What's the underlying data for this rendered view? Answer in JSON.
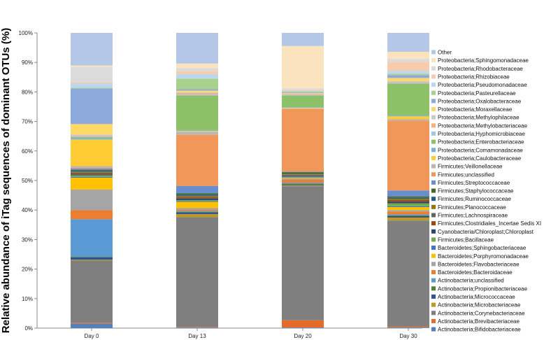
{
  "chart_data": {
    "type": "bar",
    "stacked": true,
    "ylabel": "Relative abundance of iTag sequences of dominant OTUs (%)",
    "ylim": [
      0,
      100
    ],
    "yticks": [
      "0%",
      "10%",
      "20%",
      "30%",
      "40%",
      "50%",
      "60%",
      "70%",
      "80%",
      "90%",
      "100%"
    ],
    "categories": [
      "Day 0",
      "Day 13",
      "Day 20",
      "Day 30"
    ],
    "grid": false,
    "legend_position": "right",
    "series": [
      {
        "name": "Actinobacteria;Bifidobacteriaceae",
        "color": "#4f81bd",
        "values": [
          1.5,
          0.2,
          0.2,
          0.2
        ]
      },
      {
        "name": "Actinobacteria;Brevibacteriaceae",
        "color": "#e46c28",
        "values": [
          0.3,
          0.2,
          2.5,
          0.3
        ]
      },
      {
        "name": "Actinobacteria;Corynebacteriaceae",
        "color": "#7f7f7f",
        "values": [
          21.0,
          36.5,
          46.0,
          36.5
        ]
      },
      {
        "name": "Actinobacteria;Microbacteriaceae",
        "color": "#c09a20",
        "values": [
          0.3,
          1.0,
          0.3,
          1.0
        ]
      },
      {
        "name": "Actinobacteria;Micrococcaceae",
        "color": "#2f5597",
        "values": [
          0.8,
          0.5,
          0.3,
          0.5
        ]
      },
      {
        "name": "Actinobacteria;Propionibacteriaceae",
        "color": "#548235",
        "values": [
          0.2,
          0.3,
          0.3,
          0.3
        ]
      },
      {
        "name": "Actinobacteria;unclassified",
        "color": "#5b9bd5",
        "values": [
          12.7,
          0.3,
          0.3,
          0.3
        ]
      },
      {
        "name": "Bacteroidetes;Bacteroidaceae",
        "color": "#ed7d31",
        "values": [
          3.0,
          0.5,
          1.0,
          1.0
        ]
      },
      {
        "name": "Bacteroidetes;Flavobacteriaceae",
        "color": "#a5a5a5",
        "values": [
          7.0,
          0.5,
          0.5,
          0.5
        ]
      },
      {
        "name": "Bacteroidetes;Porphyromonadaceae",
        "color": "#ffc000",
        "values": [
          4.0,
          2.0,
          0.2,
          1.0
        ]
      },
      {
        "name": "Bacteroidetes;Sphingobacteriaceae",
        "color": "#4472c4",
        "values": [
          0.3,
          0.3,
          0.2,
          0.3
        ]
      },
      {
        "name": "Firmicutes;Bacillaceae",
        "color": "#70ad47",
        "values": [
          0.5,
          0.3,
          0.2,
          1.0
        ]
      },
      {
        "name": "Cyanobacteria/Chloroplast;Chloroplast",
        "color": "#264478",
        "values": [
          0.3,
          0.5,
          0.2,
          0.5
        ]
      },
      {
        "name": "Firmicutes;Clostridiales_Incertae Sedis XI",
        "color": "#9e480e",
        "values": [
          0.3,
          0.3,
          0.2,
          0.5
        ]
      },
      {
        "name": "Firmicutes;Lachnospiraceae",
        "color": "#636363",
        "values": [
          0.3,
          0.3,
          0.2,
          0.3
        ]
      },
      {
        "name": "Firmicutes;Planococcaceae",
        "color": "#997300",
        "values": [
          0.3,
          0.3,
          0.2,
          0.3
        ]
      },
      {
        "name": "Firmicutes;Ruminococcaceae",
        "color": "#255e91",
        "values": [
          0.3,
          0.3,
          0.2,
          0.3
        ]
      },
      {
        "name": "Firmicutes;Staphylococcaceae",
        "color": "#43682b",
        "values": [
          0.3,
          0.5,
          0.5,
          0.5
        ]
      },
      {
        "name": "Firmicutes;Streptococcaceae",
        "color": "#698ed0",
        "values": [
          0.5,
          2.5,
          0.2,
          2.0
        ]
      },
      {
        "name": "Firmicutes;unclassified",
        "color": "#f1975a",
        "values": [
          0.3,
          17.0,
          21.5,
          24.0
        ]
      },
      {
        "name": "Firmicutes;Veillonellaceae",
        "color": "#b7b7b7",
        "values": [
          0.5,
          1.0,
          0.2,
          0.5
        ]
      },
      {
        "name": "Proteobacteria;Caulobacteraceae",
        "color": "#ffcd33",
        "values": [
          9.0,
          0.3,
          0.2,
          1.0
        ]
      },
      {
        "name": "Proteobacteria;Comamonadaceae",
        "color": "#7cafdd",
        "values": [
          0.5,
          0.3,
          0.2,
          0.3
        ]
      },
      {
        "name": "Proteobacteria;Enterobacteriaceae",
        "color": "#8cc168",
        "values": [
          0.3,
          11.5,
          4.0,
          11.0
        ]
      },
      {
        "name": "Proteobacteria;Hyphomicrobiaceae",
        "color": "#a9c4eb",
        "values": [
          0.3,
          0.3,
          0.2,
          0.3
        ]
      },
      {
        "name": "Proteobacteria;Methylobacteriaceae",
        "color": "#f4b183",
        "values": [
          0.3,
          0.5,
          0.3,
          0.3
        ]
      },
      {
        "name": "Proteobacteria;Methylophilaceae",
        "color": "#c9c9c9",
        "values": [
          0.3,
          0.3,
          0.2,
          0.3
        ]
      },
      {
        "name": "Proteobacteria;Moraxellaceae",
        "color": "#ffd966",
        "values": [
          3.5,
          0.5,
          0.2,
          1.0
        ]
      },
      {
        "name": "Proteobacteria;Oxalobacteraceae",
        "color": "#8ea9db",
        "values": [
          12.0,
          0.5,
          0.2,
          1.0
        ]
      },
      {
        "name": "Proteobacteria;Pasteurellaceae",
        "color": "#a9d18e",
        "values": [
          0.3,
          3.5,
          0.3,
          0.5
        ]
      },
      {
        "name": "Proteobacteria;Pseudomonadaceae",
        "color": "#bdd7ee",
        "values": [
          1.5,
          1.5,
          0.3,
          1.0
        ]
      },
      {
        "name": "Proteobacteria;Rhizobiaceae",
        "color": "#f8cbad",
        "values": [
          0.5,
          1.0,
          0.3,
          3.0
        ]
      },
      {
        "name": "Proteobacteria;Rhodobacteraceae",
        "color": "#dbdbdb",
        "values": [
          5.0,
          1.0,
          0.5,
          1.0
        ]
      },
      {
        "name": "Proteobacteria;Sphingomonadaceae",
        "color": "#fbe3bd",
        "values": [
          0.5,
          1.5,
          14.5,
          2.5
        ]
      },
      {
        "name": "Other",
        "color": "#b4c7e7",
        "values": [
          11.0,
          10.2,
          4.5,
          6.5
        ]
      }
    ]
  }
}
